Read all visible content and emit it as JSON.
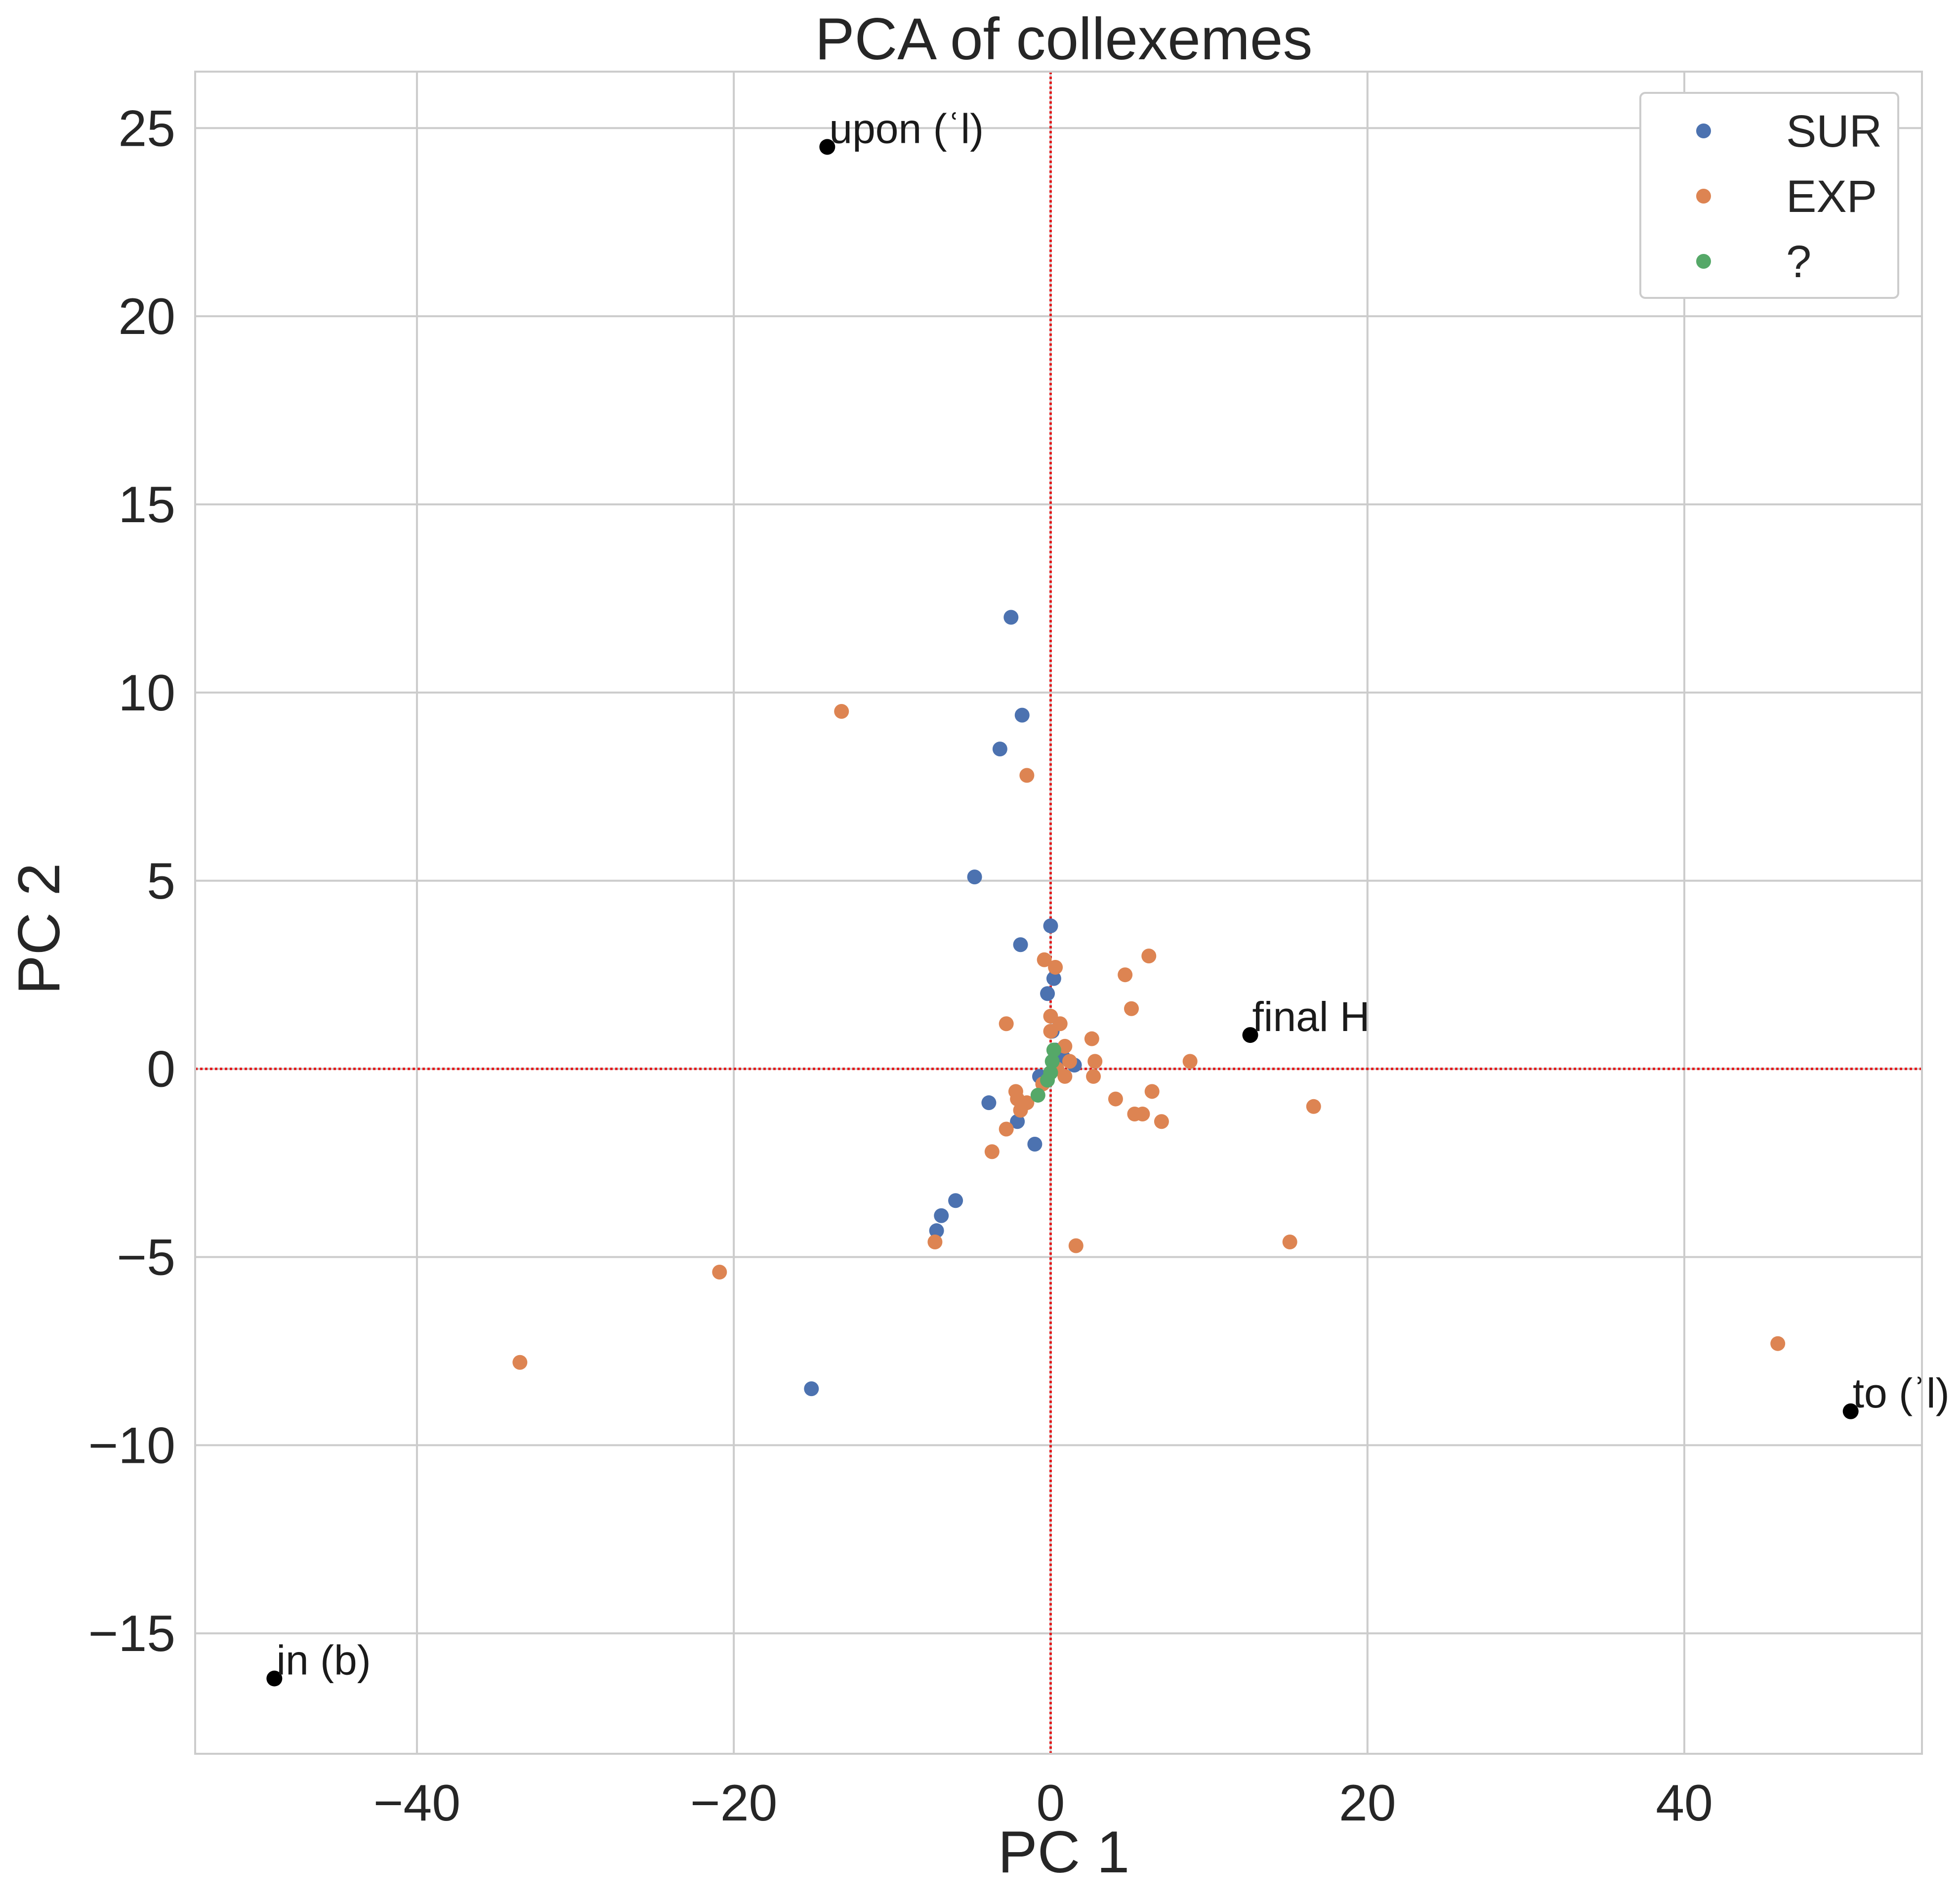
{
  "chart_data": {
    "type": "scatter",
    "title": "PCA of collexemes",
    "xlabel": "PC 1",
    "ylabel": "PC 2",
    "xlim": [
      -54,
      55
    ],
    "ylim": [
      -18.2,
      26.5
    ],
    "xticks": [
      -40,
      -20,
      0,
      20,
      40
    ],
    "xtick_labels": [
      "−40",
      "−20",
      "0",
      "20",
      "40"
    ],
    "yticks": [
      -15,
      -10,
      -5,
      0,
      5,
      10,
      15,
      20,
      25
    ],
    "ytick_labels": [
      "−15",
      "−10",
      "−5",
      "0",
      "5",
      "10",
      "15",
      "20",
      "25"
    ],
    "grid": true,
    "legend_position": "top-right",
    "reference_lines": {
      "x": 0,
      "y": 0,
      "color": "#e31a1c",
      "style": "dotted"
    },
    "series": [
      {
        "name": "SUR",
        "color": "#4c72b0",
        "points": [
          [
            -2.5,
            12.0
          ],
          [
            -1.8,
            9.4
          ],
          [
            -3.2,
            8.5
          ],
          [
            -4.8,
            5.1
          ],
          [
            -1.9,
            3.3
          ],
          [
            0.0,
            3.8
          ],
          [
            0.2,
            2.4
          ],
          [
            -0.2,
            2.0
          ],
          [
            0.1,
            1.0
          ],
          [
            0.3,
            0.5
          ],
          [
            0.8,
            0.3
          ],
          [
            1.5,
            0.1
          ],
          [
            -0.7,
            -0.2
          ],
          [
            -3.9,
            -0.9
          ],
          [
            -2.1,
            -1.4
          ],
          [
            -1.0,
            -2.0
          ],
          [
            -6.0,
            -3.5
          ],
          [
            -6.9,
            -3.9
          ],
          [
            -7.2,
            -4.3
          ],
          [
            -15.1,
            -8.5
          ]
        ]
      },
      {
        "name": "EXP",
        "color": "#dd8452",
        "points": [
          [
            -13.2,
            9.5
          ],
          [
            -1.5,
            7.8
          ],
          [
            6.2,
            3.0
          ],
          [
            -0.4,
            2.9
          ],
          [
            0.3,
            2.7
          ],
          [
            4.7,
            2.5
          ],
          [
            5.1,
            1.6
          ],
          [
            0.0,
            1.4
          ],
          [
            0.6,
            1.2
          ],
          [
            -2.8,
            1.2
          ],
          [
            0.0,
            1.0
          ],
          [
            2.6,
            0.8
          ],
          [
            0.9,
            0.6
          ],
          [
            8.8,
            0.2
          ],
          [
            2.8,
            0.2
          ],
          [
            1.2,
            0.2
          ],
          [
            0.4,
            0.0
          ],
          [
            2.7,
            -0.2
          ],
          [
            0.9,
            -0.2
          ],
          [
            -0.5,
            -0.4
          ],
          [
            6.4,
            -0.6
          ],
          [
            -2.2,
            -0.6
          ],
          [
            -2.1,
            -0.8
          ],
          [
            4.1,
            -0.8
          ],
          [
            -1.5,
            -0.9
          ],
          [
            -1.9,
            -1.1
          ],
          [
            5.3,
            -1.2
          ],
          [
            5.8,
            -1.2
          ],
          [
            16.6,
            -1.0
          ],
          [
            7.0,
            -1.4
          ],
          [
            -2.8,
            -1.6
          ],
          [
            -3.7,
            -2.2
          ],
          [
            1.6,
            -4.7
          ],
          [
            15.1,
            -4.6
          ],
          [
            -7.3,
            -4.6
          ],
          [
            -20.9,
            -5.4
          ],
          [
            -33.5,
            -7.8
          ],
          [
            45.9,
            -7.3
          ]
        ]
      },
      {
        "name": "?",
        "color": "#55a868",
        "points": [
          [
            0.2,
            0.5
          ],
          [
            0.1,
            0.2
          ],
          [
            0.0,
            -0.1
          ],
          [
            -0.2,
            -0.3
          ],
          [
            -0.8,
            -0.7
          ]
        ]
      }
    ],
    "annotations": [
      {
        "label": "upon (ʿl)",
        "x": -14.1,
        "y": 24.5,
        "color": "#000000"
      },
      {
        "label": "final H",
        "x": 12.6,
        "y": 0.9,
        "color": "#000000"
      },
      {
        "label": "to (ʾl)",
        "x": 50.5,
        "y": -9.1,
        "color": "#000000"
      },
      {
        "label": "in (b)",
        "x": -49.0,
        "y": -16.2,
        "color": "#000000"
      }
    ]
  }
}
